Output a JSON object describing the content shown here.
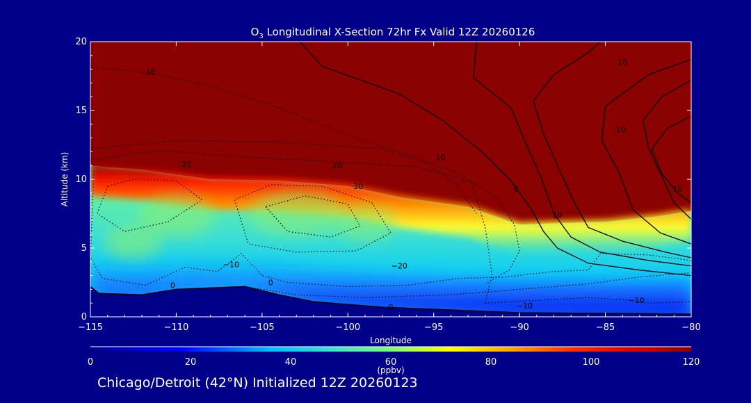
{
  "chart_data": {
    "type": "heatmap",
    "title": "O",
    "title_sub": "3",
    "title_rest": " Longitudinal X-Section 72hr  Fx Valid 12Z 20260126",
    "xlabel": "Longitude",
    "ylabel": "Altitude (km)",
    "xlim": [
      -115,
      -80
    ],
    "ylim": [
      0,
      20
    ],
    "x_ticks": [
      -115,
      -110,
      -105,
      -100,
      -95,
      -90,
      -85,
      -80
    ],
    "x_tick_labels": [
      "−115",
      "−110",
      "−105",
      "−100",
      "−95",
      "−90",
      "−85",
      "−80"
    ],
    "y_ticks": [
      0,
      5,
      10,
      15,
      20
    ],
    "y_tick_labels": [
      "0",
      "5",
      "10",
      "15",
      "20"
    ],
    "colorbar": {
      "min": 0,
      "max": 120,
      "ticks": [
        0,
        20,
        40,
        60,
        80,
        100,
        120
      ],
      "tick_labels": [
        "0",
        "20",
        "40",
        "60",
        "80",
        "100",
        "120"
      ],
      "units": "(ppbv)"
    },
    "terrain_km": [
      [
        -115,
        2.2
      ],
      [
        -114.5,
        1.7
      ],
      [
        -112,
        1.6
      ],
      [
        -110,
        2.0
      ],
      [
        -106,
        2.2
      ],
      [
        -104,
        1.6
      ],
      [
        -102,
        1.1
      ],
      [
        -98,
        0.7
      ],
      [
        -94,
        0.5
      ],
      [
        -90,
        0.3
      ],
      [
        -80,
        0.2
      ]
    ],
    "tropopause_km": [
      [
        -115,
        11.0
      ],
      [
        -112,
        10.7
      ],
      [
        -108,
        10.0
      ],
      [
        -104,
        9.9
      ],
      [
        -100,
        9.5
      ],
      [
        -97,
        8.7
      ],
      [
        -93,
        8.0
      ],
      [
        -90,
        6.7
      ],
      [
        -88,
        6.8
      ],
      [
        -85,
        6.9
      ],
      [
        -82,
        7.3
      ],
      [
        -80,
        7.7
      ]
    ],
    "contour_labels": [
      {
        "text": "10",
        "lon": -111.5,
        "alt": 17.6
      },
      {
        "text": "20",
        "lon": -109.4,
        "alt": 10.9
      },
      {
        "text": "20",
        "lon": -100.6,
        "alt": 10.8
      },
      {
        "text": "10",
        "lon": -94.6,
        "alt": 11.4
      },
      {
        "text": "30",
        "lon": -99.4,
        "alt": 9.3
      },
      {
        "text": "0",
        "lon": -90.2,
        "alt": 9.1
      },
      {
        "text": "10",
        "lon": -87.8,
        "alt": 7.2
      },
      {
        "text": "10",
        "lon": -84.0,
        "alt": 18.3
      },
      {
        "text": "10",
        "lon": -84.1,
        "alt": 13.4
      },
      {
        "text": "10",
        "lon": -80.8,
        "alt": 9.1
      },
      {
        "text": "−10",
        "lon": -106.8,
        "alt": 3.6
      },
      {
        "text": "−20",
        "lon": -97.0,
        "alt": 3.5
      },
      {
        "text": "0",
        "lon": -110.2,
        "alt": 2.1
      },
      {
        "text": "0",
        "lon": -104.5,
        "alt": 2.3
      },
      {
        "text": "0",
        "lon": -97.5,
        "alt": 0.5
      },
      {
        "text": "−10",
        "lon": -89.7,
        "alt": 0.6
      },
      {
        "text": "−10",
        "lon": -83.2,
        "alt": 1.0
      }
    ]
  },
  "footer": "Chicago/Detroit (42°N) Initialized 12Z 20260123"
}
